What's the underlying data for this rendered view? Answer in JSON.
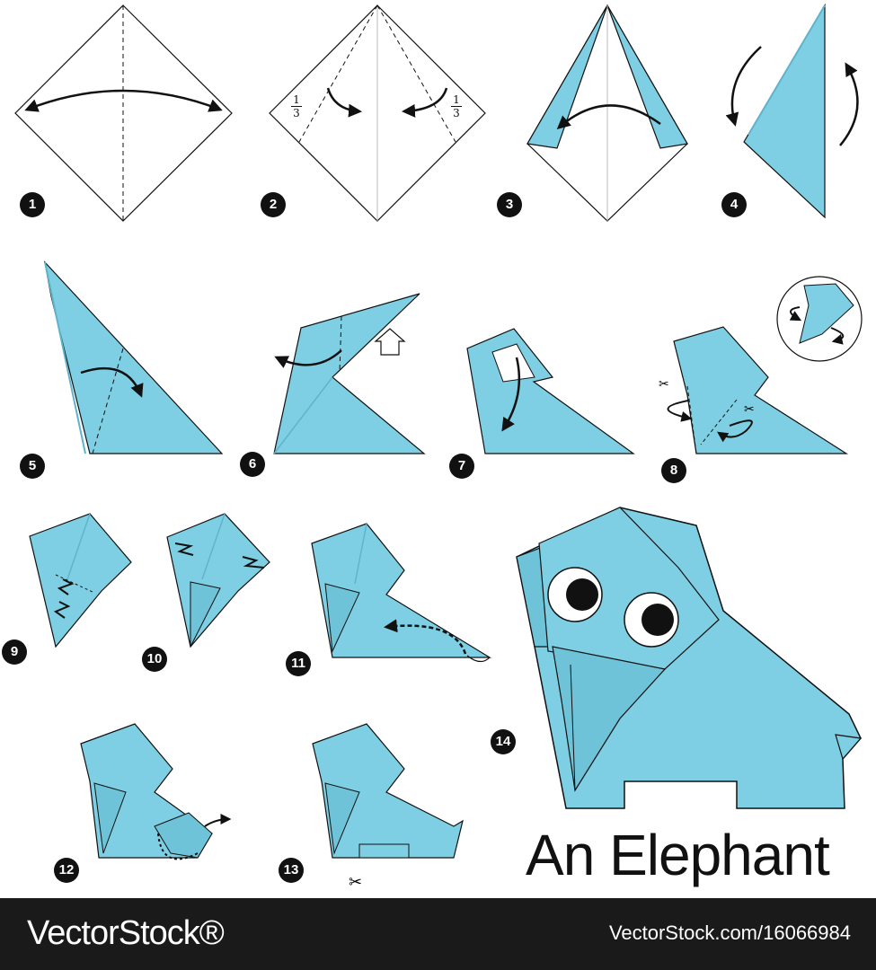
{
  "title": "An Elephant",
  "colors": {
    "paper": "#7ecfe3",
    "paper_dark": "#5fb4cc",
    "outline": "#111111",
    "footer_bg": "#1a1a1a"
  },
  "steps": [
    {
      "number": "1"
    },
    {
      "number": "2"
    },
    {
      "number": "3"
    },
    {
      "number": "4"
    },
    {
      "number": "5"
    },
    {
      "number": "6"
    },
    {
      "number": "7"
    },
    {
      "number": "8"
    },
    {
      "number": "9"
    },
    {
      "number": "10"
    },
    {
      "number": "11"
    },
    {
      "number": "12"
    },
    {
      "number": "13"
    },
    {
      "number": "14"
    }
  ],
  "fraction": {
    "numerator": "1",
    "denominator": "3"
  },
  "icons": {
    "scissors": "scissors-icon"
  },
  "footer": {
    "brand": "VectorStock®",
    "image_id": "VectorStock.com/16066984"
  }
}
